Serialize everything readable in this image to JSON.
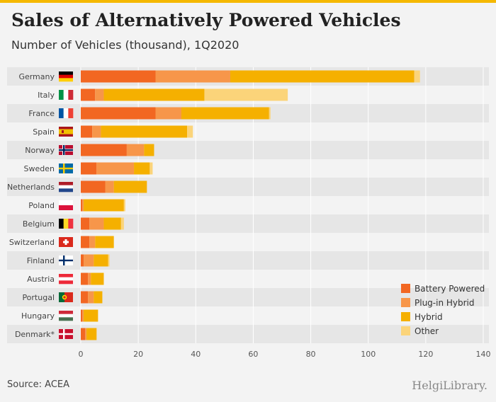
{
  "title": "Sales of Alternatively Powered Vehicles",
  "subtitle": "Number of Vehicles (thousand), 1Q2020",
  "source": "Source: ACEA",
  "logo": "HelgiLibrary.",
  "colors": {
    "battery": "#f26722",
    "plugin": "#f7964a",
    "hybrid": "#f5b000",
    "other": "#fbd47a",
    "topbar": "#f5b800"
  },
  "chart_data": {
    "type": "bar",
    "orientation": "horizontal",
    "stacked": true,
    "categories": [
      "Germany",
      "Italy",
      "France",
      "Spain",
      "Norway",
      "Sweden",
      "Netherlands",
      "Poland",
      "Belgium",
      "Switzerland",
      "Finland",
      "Austria",
      "Portugal",
      "Hungary",
      "Denmark*"
    ],
    "series": [
      {
        "name": "Battery Powered",
        "values": [
          26,
          5,
          26,
          4,
          16,
          5.5,
          8.5,
          0.5,
          3,
          3,
          1,
          2.5,
          2.5,
          0.5,
          1.5
        ]
      },
      {
        "name": "Plug-in Hybrid",
        "values": [
          26,
          3,
          9,
          3,
          6,
          13,
          3,
          0.5,
          5,
          2,
          3.5,
          1,
          2,
          0.5,
          0.5
        ]
      },
      {
        "name": "Hybrid",
        "values": [
          64,
          35,
          30.5,
          30,
          3.5,
          5.5,
          11.5,
          14,
          6,
          6.5,
          5,
          4.5,
          3,
          5,
          3.5
        ]
      },
      {
        "name": "Other",
        "values": [
          2,
          29,
          0.5,
          2,
          0,
          1,
          0,
          0.5,
          1,
          0,
          0.5,
          0,
          0,
          0,
          0
        ]
      }
    ],
    "xlim": [
      0,
      140
    ],
    "xticks": [
      0,
      20,
      40,
      60,
      80,
      100,
      120,
      140
    ],
    "grid": true,
    "legend_position": "bottom-right"
  }
}
